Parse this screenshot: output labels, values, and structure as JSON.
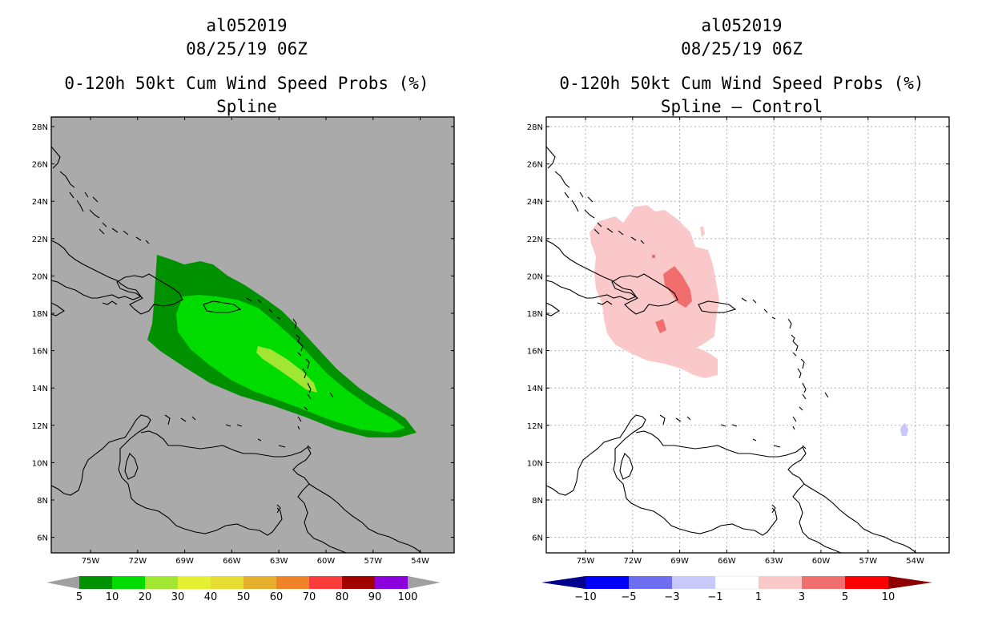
{
  "left": {
    "storm_id": "al052019",
    "datetime": "08/25/19 06Z",
    "product": "0-120h 50kt Cum Wind Speed Probs (%)",
    "subtitle": "Spline",
    "colorbar": {
      "labels": [
        "5",
        "10",
        "20",
        "30",
        "40",
        "50",
        "60",
        "70",
        "80",
        "90",
        "100"
      ],
      "colors": [
        "#009100",
        "#00dc00",
        "#a0e632",
        "#e6f032",
        "#e6dc32",
        "#e6af2d",
        "#f08228",
        "#fa3c3c",
        "#a00000",
        "#8c00dc",
        "#969696"
      ],
      "tip_color": "#a0a0a0"
    }
  },
  "right": {
    "storm_id": "al052019",
    "datetime": "08/25/19 06Z",
    "product": "0-120h 50kt Cum Wind Speed Probs (%)",
    "subtitle": "Spline – Control",
    "colorbar": {
      "labels": [
        "−10",
        "−5",
        "−3",
        "−1",
        "1",
        "3",
        "5",
        "10"
      ],
      "colors": [
        "#0000c8",
        "#0000fa",
        "#6e6ef0",
        "#c8c8fa",
        "#ffffff",
        "#fac8c8",
        "#f06e6e",
        "#fa0000",
        "#c80000"
      ],
      "left_tip": "#00008c",
      "right_tip": "#8c0000"
    }
  },
  "axes": {
    "lat_labels": [
      "28N",
      "26N",
      "24N",
      "22N",
      "20N",
      "18N",
      "16N",
      "14N",
      "12N",
      "10N",
      "8N",
      "6N"
    ],
    "lon_labels": [
      "75W",
      "72W",
      "69W",
      "66W",
      "63W",
      "60W",
      "57W",
      "54W"
    ]
  }
}
